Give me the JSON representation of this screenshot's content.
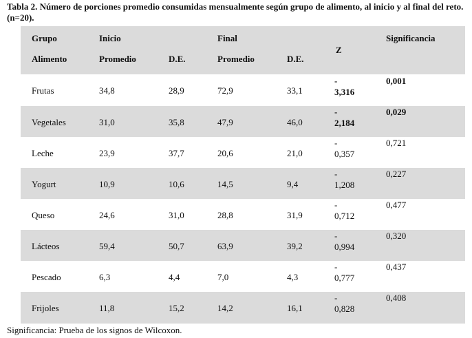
{
  "caption": "Tabla 2. Número de porciones promedio consumidas mensualmente según grupo de alimento, al inicio y al final del reto. (n=20).",
  "header": {
    "grupo_line1": "Grupo",
    "grupo_line2": "Alimento",
    "inicio": "Inicio",
    "final": "Final",
    "z": "Z",
    "significancia": "Significancia",
    "promedio_inicio": "Promedio",
    "de_inicio": "D.E.",
    "promedio_final": "Promedio",
    "de_final": "D.E."
  },
  "rows": [
    {
      "grupo": "Frutas",
      "inicio_promedio": "34,8",
      "inicio_de": "28,9",
      "final_promedio": "72,9",
      "final_de": "33,1",
      "z_sign": "-",
      "z_value": "3,316",
      "significancia": "0,001",
      "bold": true
    },
    {
      "grupo": "Vegetales",
      "inicio_promedio": "31,0",
      "inicio_de": "35,8",
      "final_promedio": "47,9",
      "final_de": "46,0",
      "z_sign": "-",
      "z_value": "2,184",
      "significancia": "0,029",
      "bold": true
    },
    {
      "grupo": "Leche",
      "inicio_promedio": "23,9",
      "inicio_de": "37,7",
      "final_promedio": "20,6",
      "final_de": "21,0",
      "z_sign": "-",
      "z_value": "0,357",
      "significancia": "0,721",
      "bold": false
    },
    {
      "grupo": "Yogurt",
      "inicio_promedio": "10,9",
      "inicio_de": "10,6",
      "final_promedio": "14,5",
      "final_de": "9,4",
      "z_sign": "-",
      "z_value": "1,208",
      "significancia": "0,227",
      "bold": false
    },
    {
      "grupo": "Queso",
      "inicio_promedio": "24,6",
      "inicio_de": "31,0",
      "final_promedio": "28,8",
      "final_de": "31,9",
      "z_sign": "-",
      "z_value": "0,712",
      "significancia": "0,477",
      "bold": false
    },
    {
      "grupo": "Lácteos",
      "inicio_promedio": "59,4",
      "inicio_de": "50,7",
      "final_promedio": "63,9",
      "final_de": "39,2",
      "z_sign": "-",
      "z_value": "0,994",
      "significancia": "0,320",
      "bold": false
    },
    {
      "grupo": "Pescado",
      "inicio_promedio": "6,3",
      "inicio_de": "4,4",
      "final_promedio": "7,0",
      "final_de": "4,3",
      "z_sign": "-",
      "z_value": "0,777",
      "significancia": "0,437",
      "bold": false
    },
    {
      "grupo": "Frijoles",
      "inicio_promedio": "11,8",
      "inicio_de": "15,2",
      "final_promedio": "14,2",
      "final_de": "16,1",
      "z_sign": "-",
      "z_value": "0,828",
      "significancia": "0,408",
      "bold": false
    }
  ],
  "footnote": "Significancia: Prueba de los signos de Wilcoxon.",
  "colors": {
    "band": "#dbdbdb",
    "text": "#111111",
    "background": "#ffffff"
  }
}
